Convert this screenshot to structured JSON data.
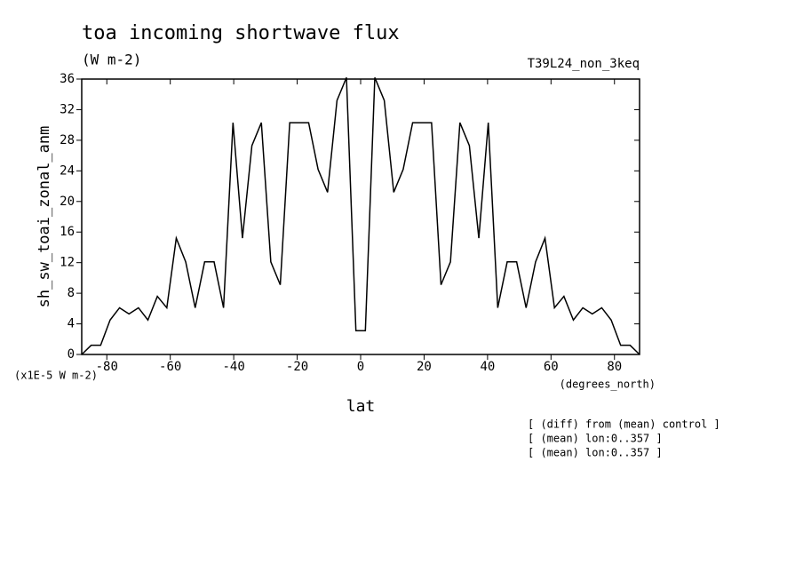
{
  "chart_data": {
    "type": "line",
    "title": "toa incoming shortwave flux",
    "subtitle": "(W m-2)",
    "dataset_label": "T39L24_non_3keq",
    "y_label": "sh_sw_toai_zonal_anm",
    "y_units": "(x1E-5 W m-2)",
    "x_units": "(degrees_north)",
    "x_label": "lat",
    "notes": [
      "[ (diff) from (mean) control ]",
      "[ (mean) lon:0..357 ]",
      "[ (mean) lon:0..357 ]"
    ],
    "x": [
      -87.91,
      -84.93,
      -81.95,
      -78.97,
      -75.99,
      -73.01,
      -70.03,
      -67.05,
      -64.07,
      -61.09,
      -58.11,
      -55.13,
      -52.15,
      -49.17,
      -46.19,
      -43.21,
      -40.23,
      -37.25,
      -34.27,
      -31.29,
      -28.31,
      -25.33,
      -22.35,
      -19.37,
      -16.39,
      -13.41,
      -10.43,
      -7.45,
      -4.47,
      -1.49,
      1.49,
      4.47,
      7.45,
      10.43,
      13.41,
      16.39,
      19.37,
      22.35,
      25.33,
      28.31,
      31.29,
      34.27,
      37.25,
      40.23,
      43.21,
      46.19,
      49.17,
      52.15,
      55.13,
      58.11,
      61.09,
      64.07,
      67.05,
      70.03,
      73.01,
      75.99,
      78.97,
      81.95,
      84.93,
      87.91
    ],
    "series": [
      {
        "name": "sh_sw_toai_zonal_anm",
        "color": "#000000",
        "values": [
          0,
          1.2,
          1.2,
          4.5,
          6.1,
          5.3,
          6.1,
          4.5,
          7.6,
          6.1,
          15.2,
          12.1,
          6.1,
          12.1,
          12.1,
          6.1,
          30.3,
          15.2,
          27.3,
          30.3,
          12.1,
          9.1,
          30.3,
          30.3,
          30.3,
          24.2,
          21.2,
          33.2,
          36.2,
          3.1,
          3.1,
          36.2,
          33.2,
          21.2,
          24.2,
          30.3,
          30.3,
          30.3,
          9.1,
          12.1,
          30.3,
          27.3,
          15.2,
          30.3,
          6.1,
          12.1,
          12.1,
          6.1,
          12.1,
          15.2,
          6.1,
          7.6,
          4.5,
          6.1,
          5.3,
          6.1,
          4.5,
          1.2,
          1.2,
          0
        ]
      }
    ],
    "xlim": [
      -87.91,
      87.91
    ],
    "xticks": [
      -80,
      -60,
      -40,
      -20,
      0,
      20,
      40,
      60,
      80
    ],
    "ylim": [
      0,
      36
    ],
    "yticks": [
      0,
      4,
      8,
      12,
      16,
      20,
      24,
      28,
      32,
      36
    ],
    "grid": false
  }
}
